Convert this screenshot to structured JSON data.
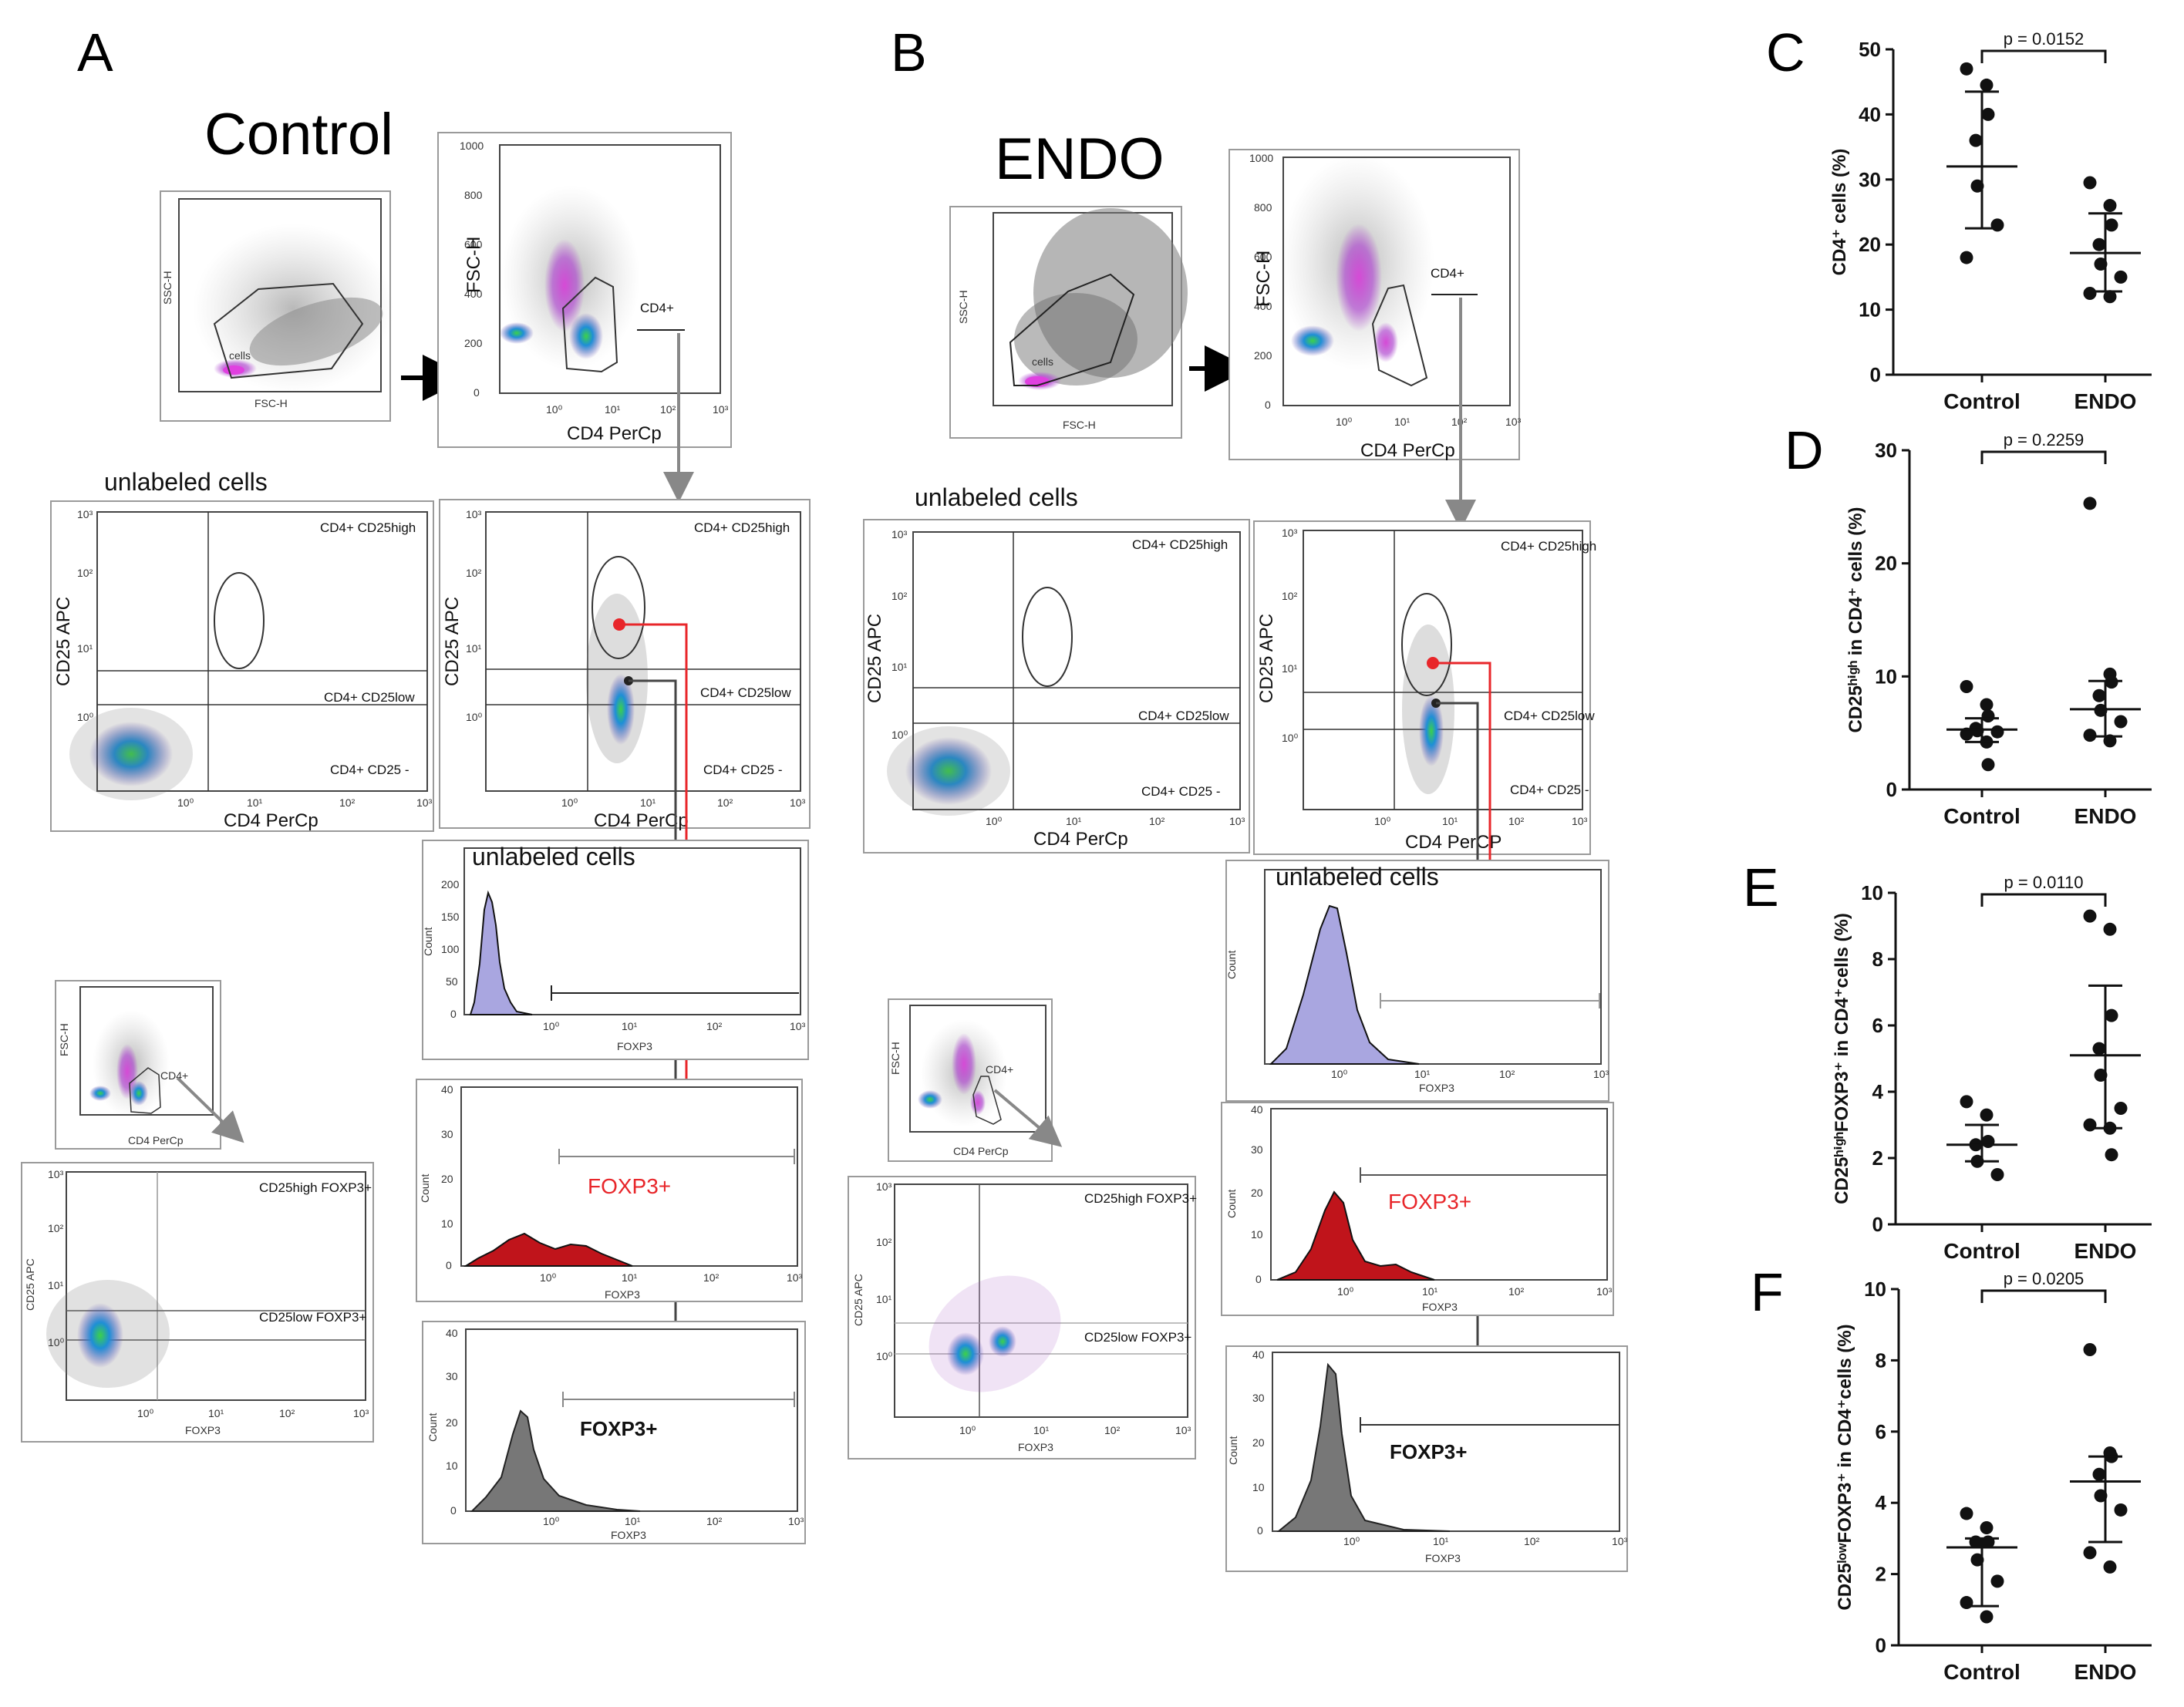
{
  "figure": {
    "panel_a": {
      "letter": "A",
      "group_title": "Control",
      "unlabeled_label": "unlabeled cells",
      "dot1": {
        "xlabel": "FSC-H",
        "ylabel": "SSC-H",
        "gate_label": "cells"
      },
      "dot2": {
        "xlabel": "CD4 PerCp",
        "ylabel": "FSC-H",
        "gate_label": "CD4+"
      },
      "quad_unlabeled": {
        "xlabel": "CD4 PerCp",
        "ylabel": "CD25 APC",
        "q_high": "CD4+ CD25high",
        "q_low": "CD4+ CD25low",
        "q_neg": "CD4+ CD25 -"
      },
      "quad_stained": {
        "xlabel": "CD4 PerCp",
        "ylabel": "CD25 APC",
        "q_high": "CD4+ CD25high",
        "q_low": "CD4+ CD25low",
        "q_neg": "CD4+ CD25 -"
      },
      "hist_unlabeled": {
        "title": "unlabeled cells",
        "xlabel": "FOXP3",
        "ylabel": "Count"
      },
      "hist_red": {
        "label": "FOXP3+",
        "xlabel": "FOXP3",
        "ylabel": "Count"
      },
      "hist_grey": {
        "label": "FOXP3+",
        "xlabel": "FOXP3",
        "ylabel": "Count"
      },
      "mini_dot": {
        "xlabel": "CD4 PerCp",
        "ylabel": "FSC-H",
        "gate_label": "CD4+"
      },
      "foxp3_dot": {
        "xlabel": "FOXP3",
        "ylabel": "CD25 APC",
        "q_high": "CD25high FOXP3+",
        "q_low": "CD25low FOXP3+"
      }
    },
    "panel_b": {
      "letter": "B",
      "group_title": "ENDO",
      "unlabeled_label": "unlabeled cells",
      "dot1": {
        "xlabel": "FSC-H",
        "ylabel": "SSC-H",
        "gate_label": "cells"
      },
      "dot2": {
        "xlabel": "CD4 PerCp",
        "ylabel": "FSC-H",
        "gate_label": "CD4+"
      },
      "quad_unlabeled": {
        "xlabel": "CD4 PerCp",
        "ylabel": "CD25 APC",
        "q_high": "CD4+ CD25high",
        "q_low": "CD4+ CD25low",
        "q_neg": "CD4+ CD25 -"
      },
      "quad_stained": {
        "xlabel": "CD4 PerCP",
        "ylabel": "CD25 APC",
        "q_high": "CD4+ CD25high",
        "q_low": "CD4+ CD25low",
        "q_neg": "CD4+ CD25 -"
      },
      "hist_unlabeled": {
        "title": "unlabeled cells",
        "xlabel": "FOXP3",
        "ylabel": "Count"
      },
      "hist_red": {
        "label": "FOXP3+",
        "xlabel": "FOXP3",
        "ylabel": "Count"
      },
      "hist_grey": {
        "label": "FOXP3+",
        "xlabel": "FOXP3",
        "ylabel": "Count"
      },
      "mini_dot": {
        "xlabel": "CD4 PerCp",
        "ylabel": "FSC-H",
        "gate_label": "CD4+"
      },
      "foxp3_dot": {
        "xlabel": "FOXP3",
        "ylabel": "CD25 APC",
        "q_high": "CD25high FOXP3+",
        "q_low": "CD25low FOXP3+"
      }
    },
    "flow_ticks": {
      "linear_1000": [
        "0",
        "200",
        "400",
        "600",
        "800",
        "1000"
      ],
      "log_x": [
        "10⁰",
        "10¹",
        "10²",
        "10³"
      ],
      "log_y": [
        "10⁰",
        "10¹",
        "10²",
        "10³"
      ],
      "hist_a_y": [
        "0",
        "50",
        "100",
        "150",
        "200"
      ],
      "hist_b_y": [
        "0",
        "10",
        "20",
        "30",
        "40"
      ]
    },
    "colors": {
      "hist_lavender": "#a9a6e0",
      "hist_red": "#c0141b",
      "hist_grey": "#777777",
      "gate_arrow": "#888888",
      "red_arrow": "#e8262a",
      "flow_magenta": "#cc3ccc",
      "flow_green": "#1bb35a"
    }
  },
  "chart_data": [
    {
      "type": "scatter",
      "panel": "C",
      "title": "",
      "xlabel": "",
      "ylabel": "CD4⁺ cells (%)",
      "ylim": [
        0,
        50
      ],
      "yticks": [
        0,
        10,
        20,
        30,
        40,
        50
      ],
      "categories": [
        "Control",
        "ENDO"
      ],
      "series": [
        {
          "name": "Control",
          "values": [
            47,
            44.5,
            40,
            36,
            29,
            23,
            18
          ],
          "mean": 32,
          "sd": [
            22.5,
            43.5
          ]
        },
        {
          "name": "ENDO",
          "values": [
            29.5,
            26,
            23,
            20,
            17,
            15,
            12.5,
            12
          ],
          "mean": 18.7,
          "sd": [
            12.8,
            24.8
          ]
        }
      ],
      "annotation": "p = 0.0152"
    },
    {
      "type": "scatter",
      "panel": "D",
      "title": "",
      "xlabel": "",
      "ylabel": "CD25ʰⁱᵍʰ in CD4⁺ cells (%)",
      "ylim": [
        0,
        30
      ],
      "yticks": [
        0,
        10,
        20,
        30
      ],
      "categories": [
        "Control",
        "ENDO"
      ],
      "series": [
        {
          "name": "Control",
          "values": [
            9.1,
            7.5,
            6.5,
            5.4,
            5.2,
            5.1,
            4.9,
            4.2,
            2.2
          ],
          "mean": 5.3,
          "sd": [
            4.2,
            6.3
          ]
        },
        {
          "name": "ENDO",
          "values": [
            25.3,
            10.2,
            9.5,
            8.3,
            7,
            6,
            4.8,
            4.3
          ],
          "mean": 7.1,
          "sd": [
            4.7,
            9.6
          ]
        }
      ],
      "annotation": "p = 0.2259"
    },
    {
      "type": "scatter",
      "panel": "E",
      "title": "",
      "xlabel": "",
      "ylabel": "CD25ʰⁱᵍʰFOXP3⁺ in CD4⁺cells (%)",
      "ylim": [
        0,
        10
      ],
      "yticks": [
        0,
        2,
        4,
        6,
        8,
        10
      ],
      "categories": [
        "Control",
        "ENDO"
      ],
      "series": [
        {
          "name": "Control",
          "values": [
            3.7,
            3.3,
            2.5,
            2.4,
            1.9,
            1.5
          ],
          "mean": 2.4,
          "sd": [
            1.9,
            3.0
          ]
        },
        {
          "name": "ENDO",
          "values": [
            9.3,
            8.9,
            6.3,
            5.3,
            4.5,
            3.5,
            3,
            2.9,
            2.1
          ],
          "mean": 5.1,
          "sd": [
            2.9,
            7.2
          ]
        }
      ],
      "annotation": "p = 0.0110"
    },
    {
      "type": "scatter",
      "panel": "F",
      "title": "",
      "xlabel": "",
      "ylabel": "CD25ˡᵒʷFOXP3⁺ in CD4⁺cells (%)",
      "ylim": [
        0,
        10
      ],
      "yticks": [
        0,
        2,
        4,
        6,
        8,
        10
      ],
      "categories": [
        "Control",
        "ENDO"
      ],
      "series": [
        {
          "name": "Control",
          "values": [
            3.7,
            3.3,
            2.9,
            2.9,
            2.4,
            1.8,
            1.2,
            0.8
          ],
          "mean": 2.75,
          "sd": [
            1.1,
            3.0
          ]
        },
        {
          "name": "ENDO",
          "values": [
            8.3,
            5.4,
            5.3,
            4.8,
            4.2,
            3.8,
            2.6,
            2.2
          ],
          "mean": 4.6,
          "sd": [
            2.9,
            5.3
          ]
        }
      ],
      "annotation": "p = 0.0205"
    }
  ]
}
